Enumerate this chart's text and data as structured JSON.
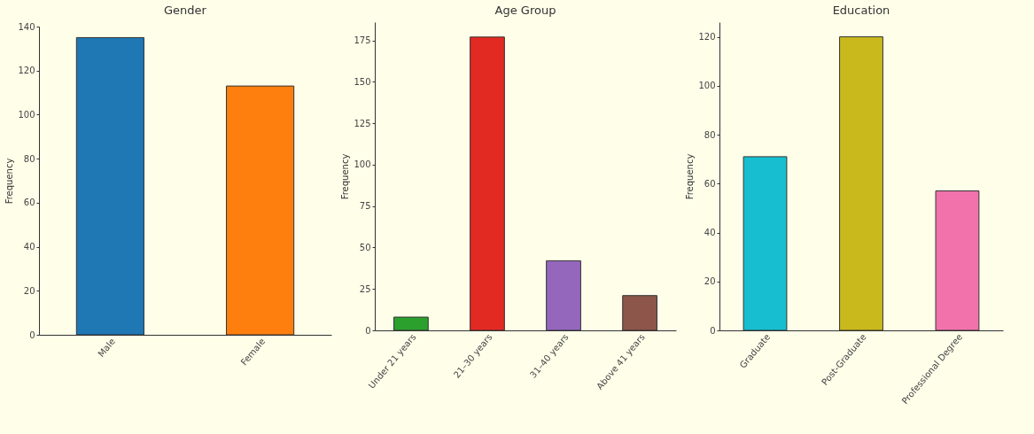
{
  "chart_data": [
    {
      "type": "bar",
      "title": "Gender",
      "ylabel": "Frequency",
      "categories": [
        "Male",
        "Female"
      ],
      "values": [
        135,
        113
      ],
      "colors": [
        "#1f77b4",
        "#ff7f0e"
      ],
      "ylim": [
        0,
        140
      ],
      "yticks": [
        0,
        20,
        40,
        60,
        80,
        100,
        120,
        140
      ]
    },
    {
      "type": "bar",
      "title": "Age Group",
      "ylabel": "Frequency",
      "categories": [
        "Under 21 years",
        "21–30 years",
        "31–40 years",
        "Above 41 years"
      ],
      "values": [
        8,
        177,
        42,
        21
      ],
      "colors": [
        "#2ca02c",
        "#e32a22",
        "#9467bd",
        "#8c564b"
      ],
      "ylim": [
        0,
        186
      ],
      "yticks": [
        0,
        25,
        50,
        75,
        100,
        125,
        150,
        175
      ]
    },
    {
      "type": "bar",
      "title": "Education",
      "ylabel": "Frequency",
      "categories": [
        "Graduate",
        "Post-Graduate",
        "Professional Degree"
      ],
      "values": [
        71,
        120,
        57
      ],
      "colors": [
        "#17becf",
        "#c9b91c",
        "#f273ac"
      ],
      "ylim": [
        0,
        126
      ],
      "yticks": [
        0,
        20,
        40,
        60,
        80,
        100,
        120
      ]
    }
  ]
}
